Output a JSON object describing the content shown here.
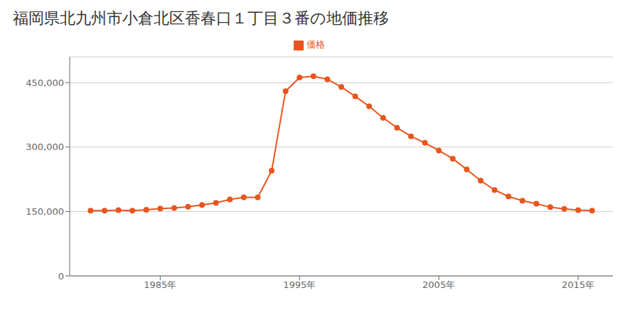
{
  "chart_data": {
    "type": "line",
    "title": "福岡県北九州市小倉北区香春口１丁目３番の地価推移",
    "x": [
      1980,
      1981,
      1982,
      1983,
      1984,
      1985,
      1986,
      1987,
      1988,
      1989,
      1990,
      1991,
      1992,
      1993,
      1994,
      1995,
      1996,
      1997,
      1998,
      1999,
      2000,
      2001,
      2002,
      2003,
      2004,
      2005,
      2006,
      2007,
      2008,
      2009,
      2010,
      2011,
      2012,
      2013,
      2014,
      2015,
      2016
    ],
    "series": [
      {
        "name": "価格",
        "color": "#E8561E",
        "marker": "circle",
        "values": [
          152000,
          152000,
          153000,
          152000,
          154000,
          157000,
          158000,
          161000,
          165000,
          170000,
          178000,
          183000,
          183000,
          245000,
          430000,
          462000,
          465000,
          458000,
          440000,
          418000,
          395000,
          368000,
          345000,
          325000,
          310000,
          292000,
          273000,
          248000,
          222000,
          200000,
          185000,
          175000,
          168000,
          160000,
          156000,
          153000,
          152000
        ]
      }
    ],
    "xlim": [
      1978.5,
      2017.5
    ],
    "xticks": [
      {
        "value": 1985,
        "label": "1985年"
      },
      {
        "value": 1995,
        "label": "1995年"
      },
      {
        "value": 2005,
        "label": "2005年"
      },
      {
        "value": 2015,
        "label": "2015年"
      }
    ],
    "ylim": [
      0,
      510000
    ],
    "yticks": [
      0,
      {
        "value": 150000,
        "label": "150,000"
      },
      {
        "value": 300000,
        "label": "300,000"
      },
      {
        "value": 450000,
        "label": "450,000"
      }
    ],
    "grid": "y",
    "legend": "top"
  }
}
